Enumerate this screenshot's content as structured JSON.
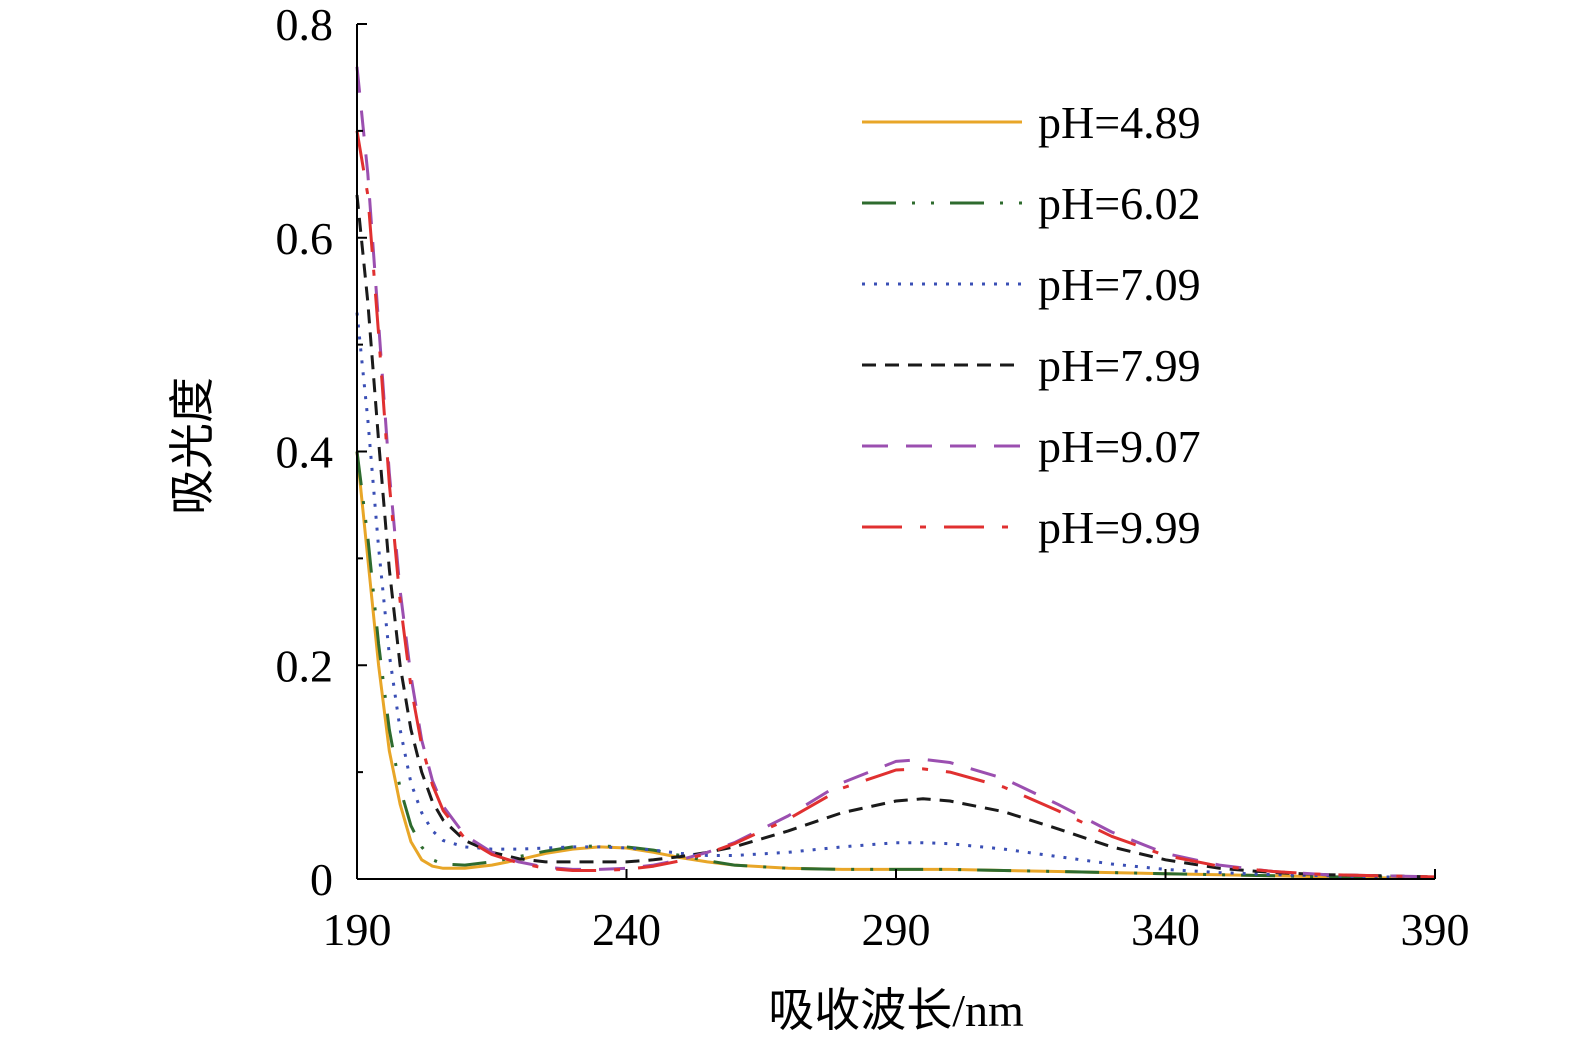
{
  "chart_data": {
    "type": "line",
    "xlabel": "吸收波长/nm",
    "ylabel": "吸光度",
    "xlim": [
      190,
      390
    ],
    "ylim": [
      0,
      0.8
    ],
    "x_ticks": [
      "190",
      "240",
      "290",
      "340",
      "390"
    ],
    "y_ticks": [
      "0",
      "0.2",
      "0.4",
      "0.6",
      "0.8"
    ],
    "grid": false,
    "legend_position": "top-right",
    "series": [
      {
        "name": "pH=4.89",
        "color": "#E8A628",
        "dash": "solid",
        "points": [
          [
            190,
            0.4
          ],
          [
            192,
            0.3
          ],
          [
            194,
            0.2
          ],
          [
            196,
            0.12
          ],
          [
            198,
            0.07
          ],
          [
            200,
            0.035
          ],
          [
            202,
            0.018
          ],
          [
            204,
            0.012
          ],
          [
            206,
            0.01
          ],
          [
            210,
            0.01
          ],
          [
            215,
            0.013
          ],
          [
            220,
            0.018
          ],
          [
            225,
            0.024
          ],
          [
            230,
            0.028
          ],
          [
            235,
            0.03
          ],
          [
            240,
            0.029
          ],
          [
            245,
            0.025
          ],
          [
            250,
            0.02
          ],
          [
            255,
            0.016
          ],
          [
            260,
            0.013
          ],
          [
            270,
            0.01
          ],
          [
            280,
            0.009
          ],
          [
            290,
            0.009
          ],
          [
            300,
            0.009
          ],
          [
            310,
            0.008
          ],
          [
            320,
            0.007
          ],
          [
            330,
            0.006
          ],
          [
            340,
            0.005
          ],
          [
            350,
            0.004
          ],
          [
            360,
            0.003
          ],
          [
            370,
            0.002
          ],
          [
            380,
            0.001
          ],
          [
            390,
            0.001
          ]
        ]
      },
      {
        "name": "pH=6.02",
        "color": "#2E6B2E",
        "dash": "dashdotdot",
        "points": [
          [
            190,
            0.4
          ],
          [
            192,
            0.32
          ],
          [
            194,
            0.22
          ],
          [
            196,
            0.14
          ],
          [
            198,
            0.085
          ],
          [
            200,
            0.05
          ],
          [
            202,
            0.03
          ],
          [
            204,
            0.018
          ],
          [
            206,
            0.014
          ],
          [
            210,
            0.013
          ],
          [
            215,
            0.016
          ],
          [
            220,
            0.021
          ],
          [
            225,
            0.026
          ],
          [
            230,
            0.03
          ],
          [
            235,
            0.031
          ],
          [
            240,
            0.03
          ],
          [
            245,
            0.027
          ],
          [
            250,
            0.022
          ],
          [
            255,
            0.017
          ],
          [
            260,
            0.013
          ],
          [
            270,
            0.01
          ],
          [
            280,
            0.009
          ],
          [
            290,
            0.009
          ],
          [
            300,
            0.009
          ],
          [
            310,
            0.008
          ],
          [
            320,
            0.007
          ],
          [
            330,
            0.006
          ],
          [
            340,
            0.005
          ],
          [
            350,
            0.004
          ],
          [
            360,
            0.003
          ],
          [
            370,
            0.002
          ],
          [
            380,
            0.002
          ],
          [
            390,
            0.001
          ]
        ]
      },
      {
        "name": "pH=7.09",
        "color": "#3A4FB5",
        "dash": "dotted",
        "points": [
          [
            190,
            0.53
          ],
          [
            192,
            0.43
          ],
          [
            194,
            0.31
          ],
          [
            196,
            0.21
          ],
          [
            198,
            0.14
          ],
          [
            200,
            0.09
          ],
          [
            202,
            0.062
          ],
          [
            204,
            0.045
          ],
          [
            206,
            0.036
          ],
          [
            210,
            0.03
          ],
          [
            215,
            0.028
          ],
          [
            220,
            0.028
          ],
          [
            225,
            0.029
          ],
          [
            230,
            0.03
          ],
          [
            235,
            0.03
          ],
          [
            240,
            0.029
          ],
          [
            245,
            0.027
          ],
          [
            250,
            0.024
          ],
          [
            255,
            0.022
          ],
          [
            260,
            0.022
          ],
          [
            270,
            0.025
          ],
          [
            280,
            0.03
          ],
          [
            290,
            0.034
          ],
          [
            295,
            0.034
          ],
          [
            300,
            0.033
          ],
          [
            310,
            0.028
          ],
          [
            320,
            0.021
          ],
          [
            330,
            0.014
          ],
          [
            340,
            0.009
          ],
          [
            350,
            0.006
          ],
          [
            360,
            0.004
          ],
          [
            370,
            0.003
          ],
          [
            380,
            0.002
          ],
          [
            390,
            0.001
          ]
        ]
      },
      {
        "name": "pH=7.99",
        "color": "#1A1A1A",
        "dash": "dashed",
        "points": [
          [
            190,
            0.64
          ],
          [
            192,
            0.54
          ],
          [
            194,
            0.41
          ],
          [
            196,
            0.29
          ],
          [
            198,
            0.2
          ],
          [
            200,
            0.14
          ],
          [
            202,
            0.1
          ],
          [
            204,
            0.072
          ],
          [
            206,
            0.055
          ],
          [
            210,
            0.036
          ],
          [
            215,
            0.025
          ],
          [
            220,
            0.019
          ],
          [
            225,
            0.016
          ],
          [
            230,
            0.016
          ],
          [
            235,
            0.016
          ],
          [
            240,
            0.016
          ],
          [
            245,
            0.018
          ],
          [
            250,
            0.021
          ],
          [
            255,
            0.025
          ],
          [
            260,
            0.03
          ],
          [
            270,
            0.045
          ],
          [
            280,
            0.062
          ],
          [
            290,
            0.073
          ],
          [
            295,
            0.075
          ],
          [
            300,
            0.073
          ],
          [
            310,
            0.063
          ],
          [
            320,
            0.047
          ],
          [
            330,
            0.03
          ],
          [
            340,
            0.018
          ],
          [
            350,
            0.01
          ],
          [
            360,
            0.006
          ],
          [
            370,
            0.004
          ],
          [
            380,
            0.003
          ],
          [
            390,
            0.002
          ]
        ]
      },
      {
        "name": "pH=9.07",
        "color": "#9B4FB0",
        "dash": "longdash",
        "points": [
          [
            190,
            0.76
          ],
          [
            192,
            0.66
          ],
          [
            194,
            0.52
          ],
          [
            196,
            0.38
          ],
          [
            198,
            0.27
          ],
          [
            200,
            0.19
          ],
          [
            202,
            0.13
          ],
          [
            204,
            0.092
          ],
          [
            206,
            0.068
          ],
          [
            210,
            0.041
          ],
          [
            215,
            0.025
          ],
          [
            220,
            0.016
          ],
          [
            225,
            0.011
          ],
          [
            230,
            0.009
          ],
          [
            235,
            0.009
          ],
          [
            240,
            0.01
          ],
          [
            245,
            0.013
          ],
          [
            250,
            0.018
          ],
          [
            255,
            0.025
          ],
          [
            260,
            0.034
          ],
          [
            270,
            0.059
          ],
          [
            280,
            0.09
          ],
          [
            290,
            0.11
          ],
          [
            295,
            0.112
          ],
          [
            300,
            0.109
          ],
          [
            310,
            0.094
          ],
          [
            320,
            0.07
          ],
          [
            330,
            0.044
          ],
          [
            340,
            0.024
          ],
          [
            350,
            0.013
          ],
          [
            360,
            0.007
          ],
          [
            370,
            0.004
          ],
          [
            380,
            0.003
          ],
          [
            390,
            0.002
          ]
        ]
      },
      {
        "name": "pH=9.99",
        "color": "#E03030",
        "dash": "longdashdot",
        "points": [
          [
            190,
            0.7
          ],
          [
            192,
            0.64
          ],
          [
            194,
            0.51
          ],
          [
            196,
            0.37
          ],
          [
            198,
            0.26
          ],
          [
            200,
            0.18
          ],
          [
            202,
            0.125
          ],
          [
            204,
            0.088
          ],
          [
            206,
            0.064
          ],
          [
            210,
            0.038
          ],
          [
            215,
            0.023
          ],
          [
            220,
            0.015
          ],
          [
            225,
            0.01
          ],
          [
            230,
            0.008
          ],
          [
            235,
            0.008
          ],
          [
            240,
            0.009
          ],
          [
            245,
            0.012
          ],
          [
            250,
            0.017
          ],
          [
            255,
            0.024
          ],
          [
            260,
            0.033
          ],
          [
            270,
            0.056
          ],
          [
            280,
            0.085
          ],
          [
            290,
            0.102
          ],
          [
            295,
            0.103
          ],
          [
            300,
            0.1
          ],
          [
            310,
            0.086
          ],
          [
            320,
            0.064
          ],
          [
            330,
            0.04
          ],
          [
            340,
            0.022
          ],
          [
            350,
            0.012
          ],
          [
            360,
            0.007
          ],
          [
            370,
            0.004
          ],
          [
            380,
            0.003
          ],
          [
            390,
            0.002
          ]
        ]
      }
    ]
  }
}
